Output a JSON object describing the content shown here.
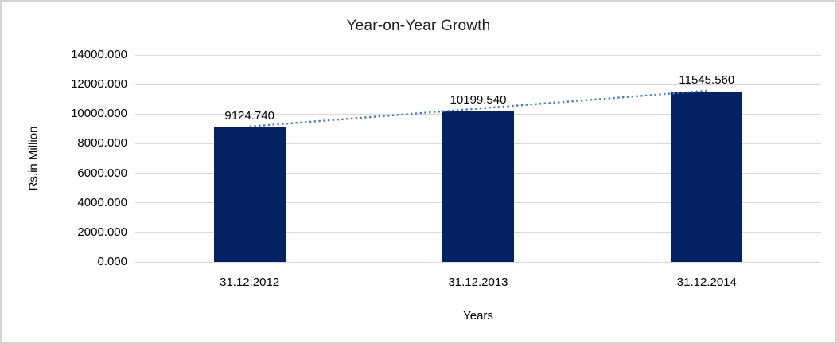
{
  "chart_data": {
    "type": "bar",
    "title": "Year-on-Year Growth",
    "xlabel": "Years",
    "ylabel": "Rs.in Million",
    "categories": [
      "31.12.2012",
      "31.12.2013",
      "31.12.2014"
    ],
    "values": [
      9124.74,
      10199.54,
      11545.56
    ],
    "data_labels": [
      "9124.740",
      "10199.540",
      "11545.560"
    ],
    "ylim": [
      0,
      14000
    ],
    "ytick_step": 2000,
    "ytick_labels": [
      "0.000",
      "2000.000",
      "4000.000",
      "6000.000",
      "8000.000",
      "10000.000",
      "12000.000",
      "14000.000"
    ],
    "grid": "horizontal",
    "legend": "none",
    "trendline": {
      "type": "linear",
      "style": "dotted",
      "color": "#4a7ebd"
    },
    "colors": {
      "bar": "#032163",
      "gridline": "#d9d9d9",
      "text": "#000000",
      "title_text": "#1f1f1f",
      "frame_border": "#d3d3d3",
      "background": "#ffffff"
    }
  }
}
